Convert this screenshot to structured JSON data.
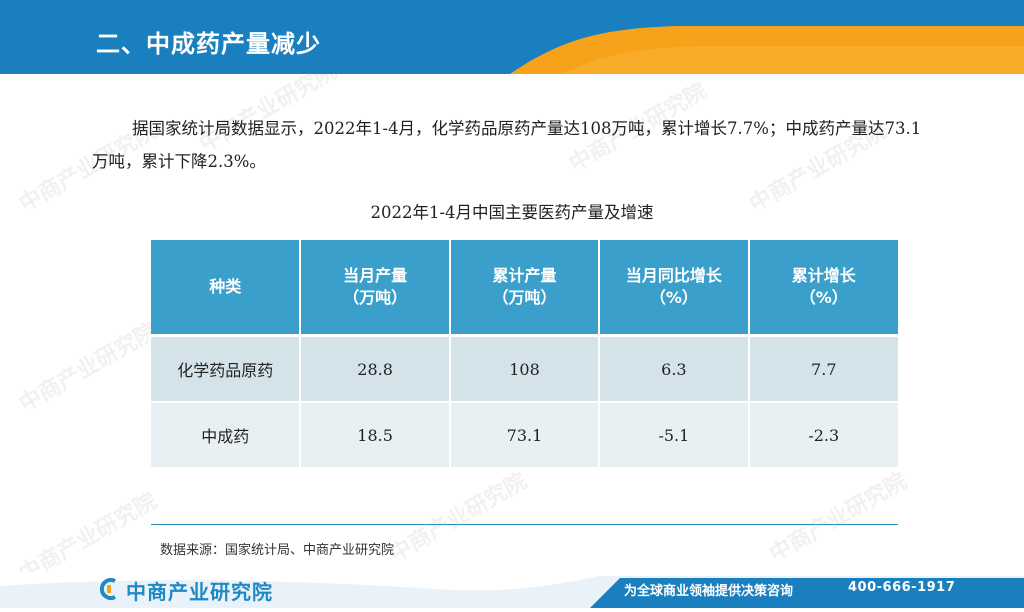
{
  "header": {
    "title": "二、中成药产量减少"
  },
  "paragraph": "据国家统计局数据显示，2022年1-4月，化学药品原药产量达108万吨，累计增长7.7%；中成药产量达73.1万吨，累计下降2.3%。",
  "table": {
    "caption": "2022年1-4月中国主要医药产量及增速",
    "headers": [
      {
        "line1": "种类",
        "line2": ""
      },
      {
        "line1": "当月产量",
        "line2": "（万吨）"
      },
      {
        "line1": "累计产量",
        "line2": "（万吨）"
      },
      {
        "line1": "当月同比增长",
        "line2": "（%）"
      },
      {
        "line1": "累计增长",
        "line2": "（%）"
      }
    ],
    "rows": [
      [
        "化学药品原药",
        "28.8",
        "108",
        "6.3",
        "7.7"
      ],
      [
        "中成药",
        "18.5",
        "73.1",
        "-5.1",
        "-2.3"
      ]
    ]
  },
  "source": "数据来源：国家统计局、中商产业研究院",
  "watermark": "中商产业研究院",
  "footer": {
    "logo_text": "中商产业研究院",
    "slogan": "为全球商业领袖提供决策咨询",
    "phone": "400-666-1917"
  },
  "colors": {
    "header_blue": "#1a7fbf",
    "header_orange": "#f7a21b",
    "table_header": "#3aa0cb",
    "row1": "#d4e3ea",
    "row2": "#e9f0f3"
  }
}
